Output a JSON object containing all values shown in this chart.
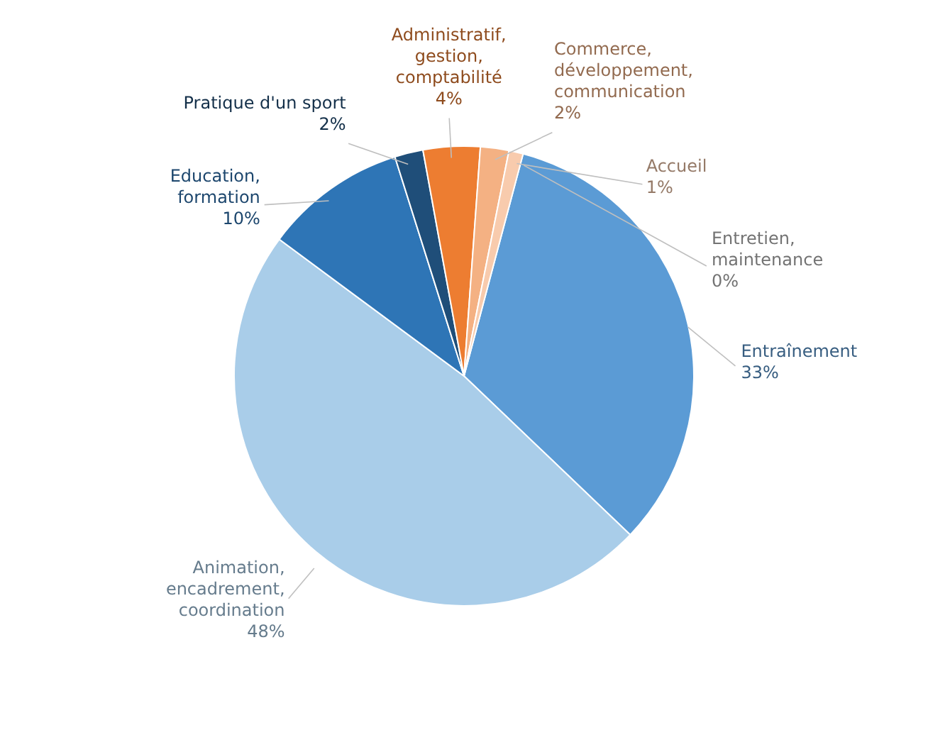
{
  "chart_data": {
    "type": "pie",
    "categories": [
      "Entraînement",
      "Animation, encadrement, coordination",
      "Education, formation",
      "Pratique d'un sport",
      "Administratif, gestion, comptabilité",
      "Commerce, développement, communication",
      "Accueil",
      "Entretien, maintenance"
    ],
    "values": [
      33,
      48,
      10,
      2,
      4,
      2,
      1,
      0
    ],
    "colors": [
      "#5b9bd5",
      "#a9cde9",
      "#2e75b6",
      "#1f4e79",
      "#ed7d31",
      "#f4b183",
      "#f8cbad",
      "#bfbfbf"
    ],
    "value_labels": [
      "33%",
      "48%",
      "10%",
      "2%",
      "4%",
      "2%",
      "1%",
      "0%"
    ]
  }
}
